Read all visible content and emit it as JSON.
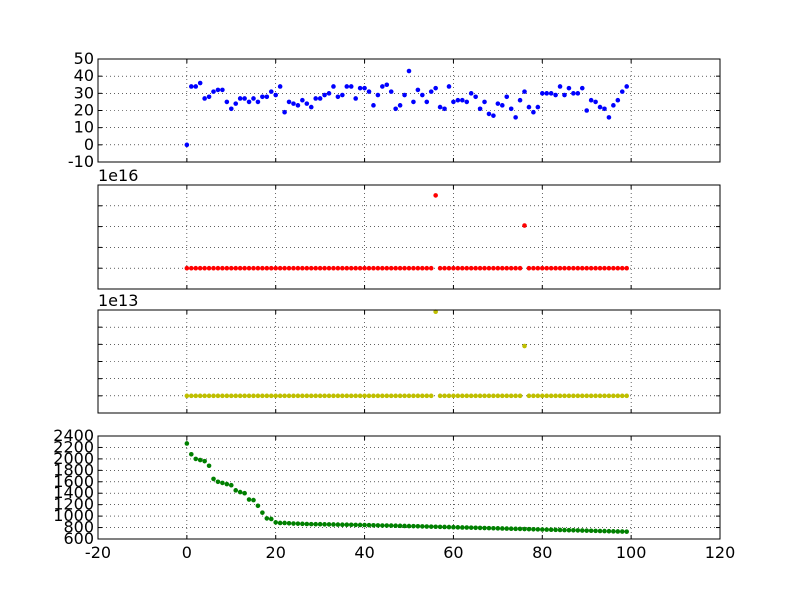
{
  "chart_data": [
    {
      "type": "scatter",
      "title": "",
      "xlabel": "",
      "ylabel": "",
      "xlim": [
        -20,
        120
      ],
      "ylim": [
        -10,
        50
      ],
      "yticks": [
        -10,
        0,
        10,
        20,
        30,
        40,
        50
      ],
      "show_x_tick_labels": false,
      "grid": true,
      "color": "#0000ff",
      "offset_label": "",
      "series": [
        {
          "x": [
            0,
            1,
            2,
            3,
            4,
            5,
            6,
            7,
            8,
            9,
            10,
            11,
            12,
            13,
            14,
            15,
            16,
            17,
            18,
            19,
            20,
            21,
            22,
            23,
            24,
            25,
            26,
            27,
            28,
            29,
            30,
            31,
            32,
            33,
            34,
            35,
            36,
            37,
            38,
            39,
            40,
            41,
            42,
            43,
            44,
            45,
            46,
            47,
            48,
            49,
            50,
            51,
            52,
            53,
            54,
            55,
            56,
            57,
            58,
            59,
            60,
            61,
            62,
            63,
            64,
            65,
            66,
            67,
            68,
            69,
            70,
            71,
            72,
            73,
            74,
            75,
            76,
            77,
            78,
            79,
            80,
            81,
            82,
            83,
            84,
            85,
            86,
            87,
            88,
            89,
            90,
            91,
            92,
            93,
            94,
            95,
            96,
            97,
            98,
            99
          ],
          "y": [
            0,
            34,
            34,
            36,
            27,
            28,
            31,
            32,
            32,
            25,
            21,
            24,
            27,
            27,
            25,
            27,
            25,
            28,
            28,
            31,
            29,
            34,
            19,
            25,
            24,
            23,
            26,
            24,
            22,
            27,
            27,
            29,
            30,
            34,
            28,
            29,
            34,
            34,
            27,
            33,
            33,
            31,
            23,
            29,
            34,
            35,
            31,
            21,
            23,
            29,
            43,
            25,
            32,
            29,
            25,
            31,
            33,
            22,
            21,
            34,
            25,
            26,
            26,
            25,
            30,
            28,
            21,
            25,
            18,
            17,
            24,
            23,
            28,
            21,
            16,
            26,
            31,
            22,
            19,
            22,
            30,
            30,
            30,
            29,
            34,
            29,
            33,
            30,
            30,
            33,
            20,
            26,
            25,
            22,
            21,
            16,
            23,
            26,
            31,
            34
          ]
        }
      ]
    },
    {
      "type": "scatter",
      "title": "",
      "xlabel": "",
      "ylabel": "",
      "xlim": [
        -20,
        120
      ],
      "ylim": [
        -1,
        4
      ],
      "yticks": [
        -1,
        0,
        1,
        2,
        3,
        4
      ],
      "show_y_tick_labels": false,
      "show_x_tick_labels": false,
      "grid": true,
      "color": "#ff0000",
      "offset_label": "1e16",
      "series": [
        {
          "x": [
            0,
            1,
            2,
            3,
            4,
            5,
            6,
            7,
            8,
            9,
            10,
            11,
            12,
            13,
            14,
            15,
            16,
            17,
            18,
            19,
            20,
            21,
            22,
            23,
            24,
            25,
            26,
            27,
            28,
            29,
            30,
            31,
            32,
            33,
            34,
            35,
            36,
            37,
            38,
            39,
            40,
            41,
            42,
            43,
            44,
            45,
            46,
            47,
            48,
            49,
            50,
            51,
            52,
            53,
            54,
            55,
            56,
            57,
            58,
            59,
            60,
            61,
            62,
            63,
            64,
            65,
            66,
            67,
            68,
            69,
            70,
            71,
            72,
            73,
            74,
            75,
            76,
            77,
            78,
            79,
            80,
            81,
            82,
            83,
            84,
            85,
            86,
            87,
            88,
            89,
            90,
            91,
            92,
            93,
            94,
            95,
            96,
            97,
            98,
            99
          ],
          "y": [
            0,
            0,
            0,
            0,
            0,
            0,
            0,
            0,
            0,
            0,
            0,
            0,
            0,
            0,
            0,
            0,
            0,
            0,
            0,
            0,
            0,
            0,
            0,
            0,
            0,
            0,
            0,
            0,
            0,
            0,
            0,
            0,
            0,
            0,
            0,
            0,
            0,
            0,
            0,
            0,
            0,
            0,
            0,
            0,
            0,
            0,
            0,
            0,
            0,
            0,
            0,
            0,
            0,
            0,
            0,
            0,
            3.5,
            0,
            0,
            0,
            0,
            0,
            0,
            0,
            0,
            0,
            0,
            0,
            0,
            0,
            0,
            0,
            0,
            0,
            0,
            0,
            2.05,
            0,
            0,
            0,
            0,
            0,
            0,
            0,
            0,
            0,
            0,
            0,
            0,
            0,
            0,
            0,
            0,
            0,
            0,
            0,
            0,
            0,
            0,
            0
          ]
        }
      ]
    },
    {
      "type": "scatter",
      "title": "",
      "xlabel": "",
      "ylabel": "",
      "xlim": [
        -20,
        120
      ],
      "ylim": [
        -1,
        5
      ],
      "yticks": [
        -1,
        0,
        1,
        2,
        3,
        4,
        5
      ],
      "show_y_tick_labels": false,
      "show_x_tick_labels": false,
      "grid": true,
      "color": "#bfbf00",
      "offset_label": "1e13",
      "series": [
        {
          "x": [
            0,
            1,
            2,
            3,
            4,
            5,
            6,
            7,
            8,
            9,
            10,
            11,
            12,
            13,
            14,
            15,
            16,
            17,
            18,
            19,
            20,
            21,
            22,
            23,
            24,
            25,
            26,
            27,
            28,
            29,
            30,
            31,
            32,
            33,
            34,
            35,
            36,
            37,
            38,
            39,
            40,
            41,
            42,
            43,
            44,
            45,
            46,
            47,
            48,
            49,
            50,
            51,
            52,
            53,
            54,
            55,
            56,
            57,
            58,
            59,
            60,
            61,
            62,
            63,
            64,
            65,
            66,
            67,
            68,
            69,
            70,
            71,
            72,
            73,
            74,
            75,
            76,
            77,
            78,
            79,
            80,
            81,
            82,
            83,
            84,
            85,
            86,
            87,
            88,
            89,
            90,
            91,
            92,
            93,
            94,
            95,
            96,
            97,
            98,
            99
          ],
          "y": [
            0,
            0,
            0,
            0,
            0,
            0,
            0,
            0,
            0,
            0,
            0,
            0,
            0,
            0,
            0,
            0,
            0,
            0,
            0,
            0,
            0,
            0,
            0,
            0,
            0,
            0,
            0,
            0,
            0,
            0,
            0,
            0,
            0,
            0,
            0,
            0,
            0,
            0,
            0,
            0,
            0,
            0,
            0,
            0,
            0,
            0,
            0,
            0,
            0,
            0,
            0,
            0,
            0,
            0,
            0,
            0,
            4.9,
            0,
            0,
            0,
            0,
            0,
            0,
            0,
            0,
            0,
            0,
            0,
            0,
            0,
            0,
            0,
            0,
            0,
            0,
            0,
            2.9,
            0,
            0,
            0,
            0,
            0,
            0,
            0,
            0,
            0,
            0,
            0,
            0,
            0,
            0,
            0,
            0,
            0,
            0,
            0,
            0,
            0,
            0,
            0
          ]
        }
      ]
    },
    {
      "type": "scatter",
      "title": "",
      "xlabel": "",
      "ylabel": "",
      "xlim": [
        -20,
        120
      ],
      "ylim": [
        600,
        2400
      ],
      "yticks": [
        600,
        800,
        1000,
        1200,
        1400,
        1600,
        1800,
        2000,
        2200,
        2400
      ],
      "xticks": [
        -20,
        0,
        20,
        40,
        60,
        80,
        100,
        120
      ],
      "show_x_tick_labels": true,
      "grid": true,
      "color": "#008000",
      "offset_label": "",
      "series": [
        {
          "x": [
            0,
            1,
            2,
            3,
            4,
            5,
            6,
            7,
            8,
            9,
            10,
            11,
            12,
            13,
            14,
            15,
            16,
            17,
            18,
            19,
            20,
            21,
            22,
            23,
            24,
            25,
            26,
            27,
            28,
            29,
            30,
            31,
            32,
            33,
            34,
            35,
            36,
            37,
            38,
            39,
            40,
            41,
            42,
            43,
            44,
            45,
            46,
            47,
            48,
            49,
            50,
            51,
            52,
            53,
            54,
            55,
            56,
            57,
            58,
            59,
            60,
            61,
            62,
            63,
            64,
            65,
            66,
            67,
            68,
            69,
            70,
            71,
            72,
            73,
            74,
            75,
            76,
            77,
            78,
            79,
            80,
            81,
            82,
            83,
            84,
            85,
            86,
            87,
            88,
            89,
            90,
            91,
            92,
            93,
            94,
            95,
            96,
            97,
            98,
            99
          ],
          "y": [
            2270,
            2080,
            2000,
            1980,
            1960,
            1880,
            1650,
            1600,
            1580,
            1560,
            1540,
            1450,
            1420,
            1400,
            1290,
            1280,
            1180,
            1060,
            960,
            950,
            890,
            880,
            880,
            875,
            870,
            868,
            865,
            862,
            860,
            858,
            858,
            856,
            855,
            854,
            852,
            850,
            850,
            848,
            846,
            845,
            844,
            842,
            840,
            838,
            836,
            835,
            834,
            832,
            830,
            828,
            826,
            824,
            822,
            820,
            818,
            816,
            814,
            812,
            810,
            808,
            806,
            804,
            802,
            800,
            798,
            796,
            794,
            792,
            790,
            788,
            786,
            784,
            782,
            780,
            778,
            776,
            774,
            772,
            770,
            768,
            766,
            764,
            762,
            760,
            758,
            756,
            754,
            752,
            750,
            748,
            746,
            744,
            742,
            740,
            738,
            736,
            734,
            732,
            730,
            728
          ]
        }
      ]
    }
  ]
}
